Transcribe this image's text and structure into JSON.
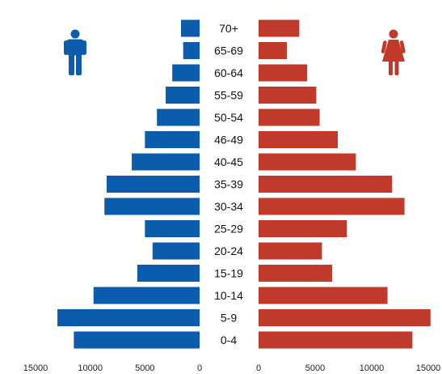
{
  "chart_data": {
    "type": "bar",
    "orientation": "horizontal",
    "layout": "population-pyramid",
    "categories": [
      "0-4",
      "5-9",
      "10-14",
      "15-19",
      "20-24",
      "25-29",
      "30-34",
      "35-39",
      "40-45",
      "46-49",
      "50-54",
      "55-59",
      "60-64",
      "65-69",
      "70+"
    ],
    "series": [
      {
        "side": "left",
        "color": "#0b5cad",
        "icon": "male-icon",
        "values": [
          11500,
          13000,
          9700,
          5700,
          4300,
          5000,
          8700,
          8500,
          6200,
          5000,
          3900,
          3100,
          2500,
          1500,
          1700
        ]
      },
      {
        "side": "right",
        "color": "#c0392b",
        "icon": "female-icon",
        "values": [
          13600,
          15200,
          11400,
          6500,
          5600,
          7800,
          12900,
          11800,
          8600,
          7000,
          5400,
          5100,
          4300,
          2500,
          3600
        ]
      }
    ],
    "left_axis": {
      "range": [
        0,
        15000
      ],
      "ticks": [
        "15000",
        "10000",
        "5000",
        "0"
      ]
    },
    "right_axis": {
      "range": [
        0,
        15000
      ],
      "ticks": [
        "0",
        "5000",
        "10000",
        "15000"
      ]
    },
    "grid": false,
    "legend": "none"
  }
}
